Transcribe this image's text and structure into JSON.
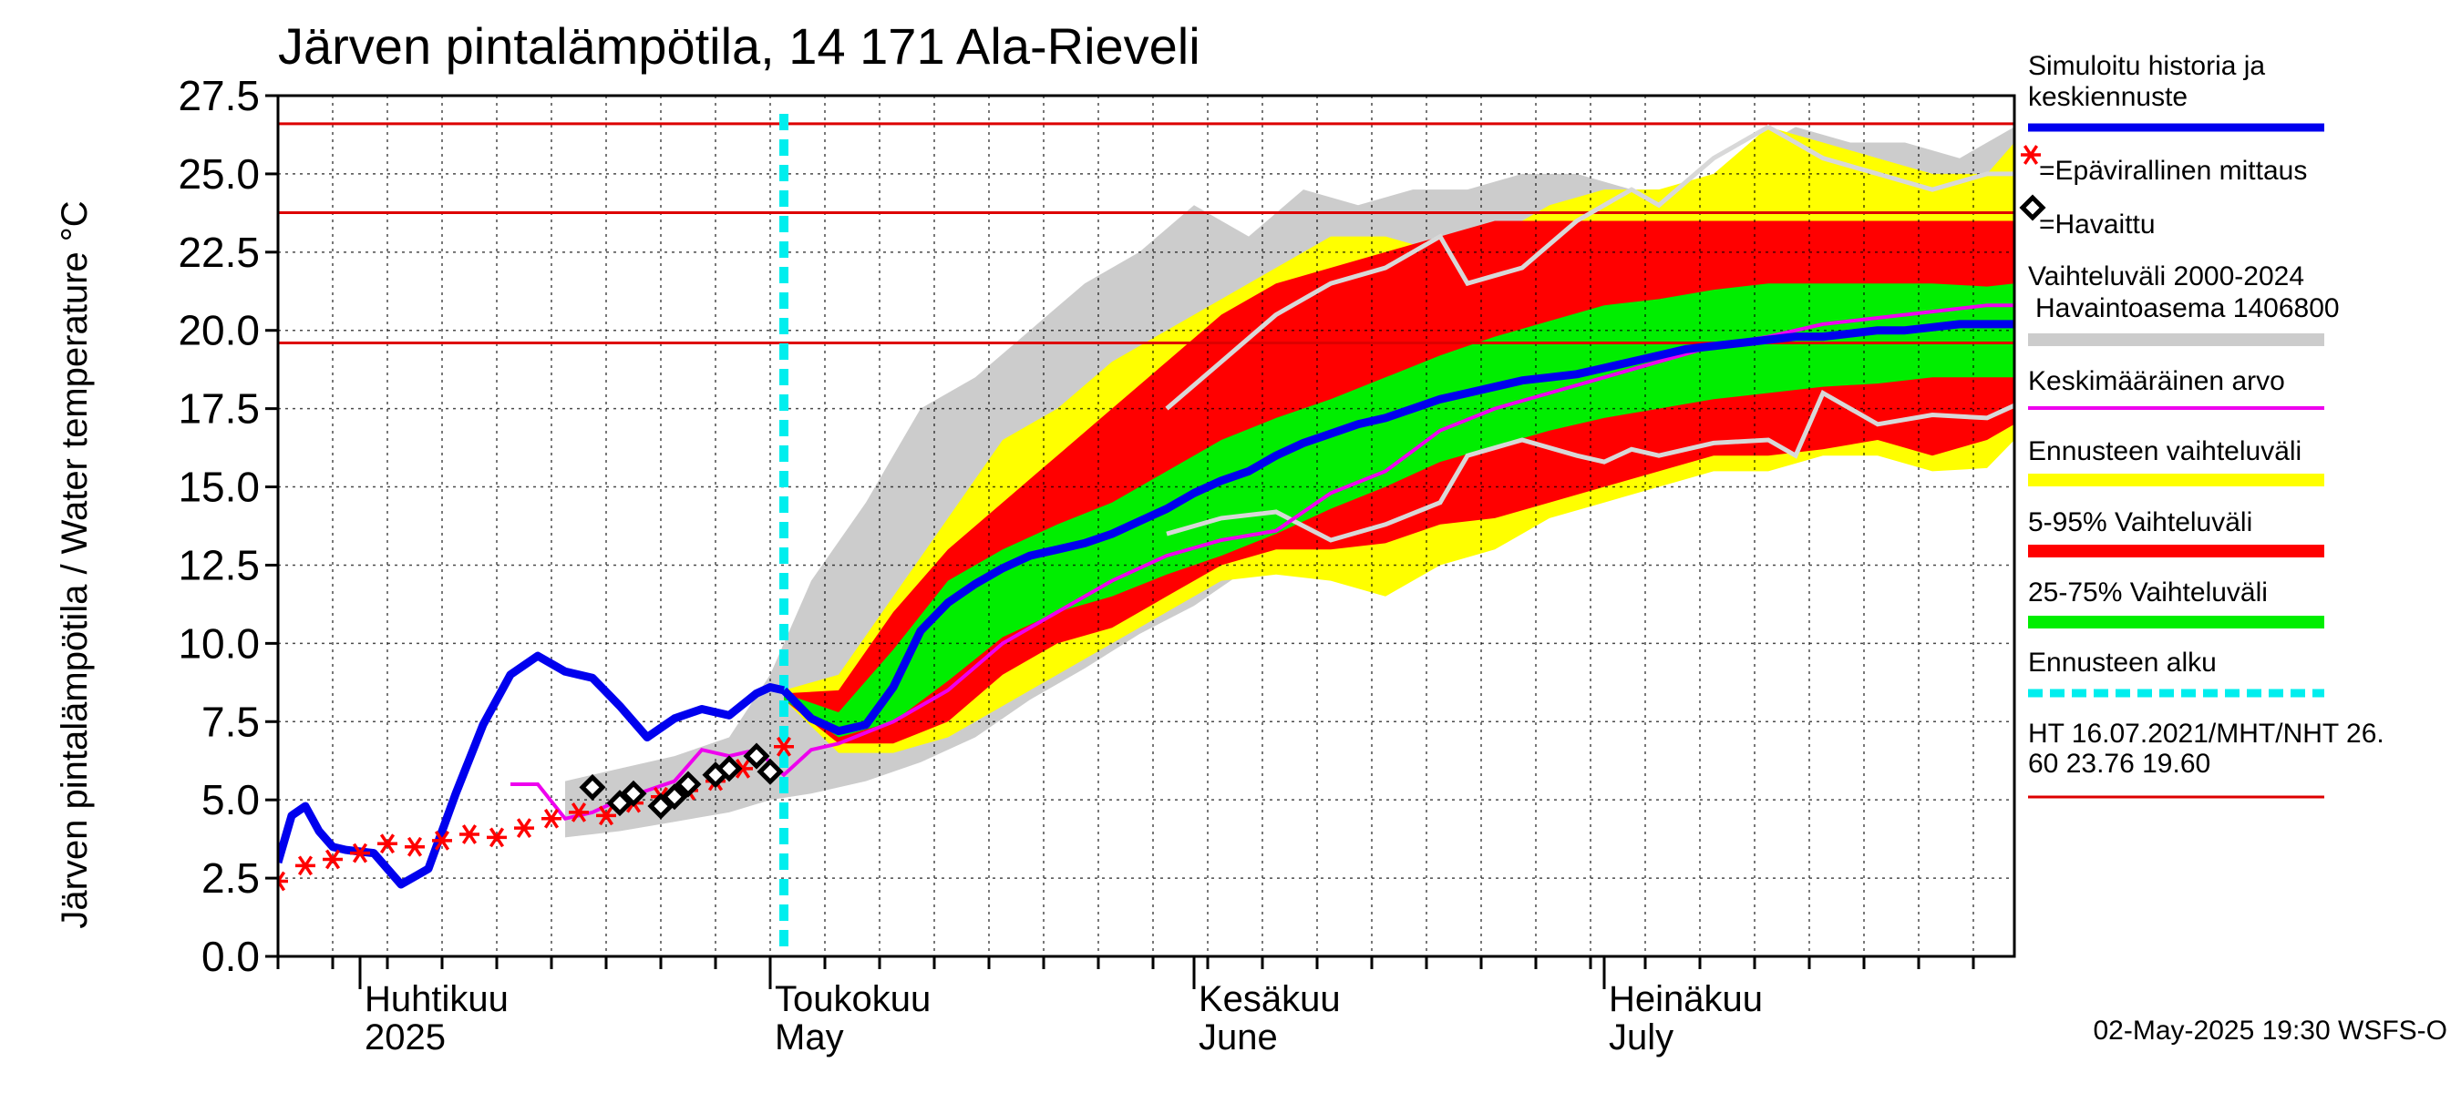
{
  "chart_data": {
    "type": "line",
    "title": "Järven pintalämpötila, 14 171 Ala-Rieveli",
    "ylabel": "Järven pintalämpötila / Water temperature °C",
    "ylim": [
      0,
      27.5
    ],
    "yticks": [
      "0.0",
      "2.5",
      "5.0",
      "7.5",
      "10.0",
      "12.5",
      "15.0",
      "17.5",
      "20.0",
      "22.5",
      "25.0",
      "27.5"
    ],
    "xlim": [
      "2025-03-26",
      "2025-07-31"
    ],
    "forecast_start": "2025-05-02",
    "month_labels": [
      {
        "date": "2025-04-01",
        "fi": "Huhtikuu",
        "en": "2025"
      },
      {
        "date": "2025-05-01",
        "fi": "Toukokuu",
        "en": "May"
      },
      {
        "date": "2025-06-01",
        "fi": "Kesäkuu",
        "en": "June"
      },
      {
        "date": "2025-07-01",
        "fi": "Heinäkuu",
        "en": "July"
      }
    ],
    "grid": true,
    "legend_position": "right",
    "colors": {
      "simulated": "#0000ee",
      "unofficial": "#ff0000",
      "observed": "#000000",
      "range_2000_2024": "#cccccc",
      "mean": "#ee00ee",
      "forecast_range": "#ffff00",
      "p5_95": "#ff0000",
      "p25_75": "#00ee00",
      "forecast_start": "#00eeee",
      "threshold": "#dd0000"
    },
    "thresholds": [
      26.6,
      23.76,
      19.6
    ],
    "legend": [
      {
        "key": "simulated",
        "label": "Simuloitu historia ja keskiennuste"
      },
      {
        "key": "unofficial",
        "label": "=Epävirallinen mittaus"
      },
      {
        "key": "observed",
        "label": "=Havaittu"
      },
      {
        "key": "range",
        "label": "Vaihteluväli 2000-2024 Havaintoasema 1406800"
      },
      {
        "key": "mean",
        "label": "Keskimääräinen arvo"
      },
      {
        "key": "forecast_range",
        "label": "Ennusteen vaihteluväli"
      },
      {
        "key": "p5_95",
        "label": "5-95% Vaihteluväli"
      },
      {
        "key": "p25_75",
        "label": "25-75% Vaihteluväli"
      },
      {
        "key": "forecast_start",
        "label": "Ennusteen alku"
      },
      {
        "key": "thresholds",
        "label": "HT 16.07.2021/MHT/NHT 26.60 23.76 19.60"
      }
    ],
    "simulated_history": {
      "x": [
        "2025-03-26",
        "2025-03-27",
        "2025-03-28",
        "2025-03-29",
        "2025-03-30",
        "2025-03-31",
        "2025-04-02",
        "2025-04-04",
        "2025-04-06",
        "2025-04-08",
        "2025-04-10",
        "2025-04-12",
        "2025-04-14",
        "2025-04-16",
        "2025-04-18",
        "2025-04-20",
        "2025-04-22",
        "2025-04-24",
        "2025-04-26",
        "2025-04-28",
        "2025-04-30",
        "2025-05-01",
        "2025-05-02"
      ],
      "y": [
        3.0,
        4.5,
        4.8,
        4.0,
        3.5,
        3.4,
        3.3,
        2.3,
        2.8,
        5.2,
        7.4,
        9.0,
        9.6,
        9.1,
        8.9,
        8.0,
        7.0,
        7.6,
        7.9,
        7.7,
        8.4,
        8.6,
        8.5
      ]
    },
    "forecast_median": {
      "x": [
        "2025-05-02",
        "2025-05-04",
        "2025-05-06",
        "2025-05-08",
        "2025-05-10",
        "2025-05-12",
        "2025-05-14",
        "2025-05-16",
        "2025-05-18",
        "2025-05-20",
        "2025-05-22",
        "2025-05-24",
        "2025-05-26",
        "2025-05-28",
        "2025-05-30",
        "2025-06-01",
        "2025-06-03",
        "2025-06-05",
        "2025-06-07",
        "2025-06-09",
        "2025-06-11",
        "2025-06-13",
        "2025-06-15",
        "2025-06-17",
        "2025-06-19",
        "2025-06-21",
        "2025-06-23",
        "2025-06-25",
        "2025-06-27",
        "2025-06-29",
        "2025-07-01",
        "2025-07-03",
        "2025-07-05",
        "2025-07-07",
        "2025-07-09",
        "2025-07-11",
        "2025-07-13",
        "2025-07-15",
        "2025-07-17",
        "2025-07-19",
        "2025-07-21",
        "2025-07-23",
        "2025-07-25",
        "2025-07-27",
        "2025-07-29",
        "2025-07-31"
      ],
      "y": [
        8.5,
        7.6,
        7.2,
        7.4,
        8.6,
        10.4,
        11.3,
        11.9,
        12.4,
        12.8,
        13.0,
        13.2,
        13.5,
        13.9,
        14.3,
        14.8,
        15.2,
        15.5,
        16.0,
        16.4,
        16.7,
        17.0,
        17.2,
        17.5,
        17.8,
        18.0,
        18.2,
        18.4,
        18.5,
        18.6,
        18.8,
        19.0,
        19.2,
        19.4,
        19.5,
        19.6,
        19.7,
        19.8,
        19.8,
        19.9,
        20.0,
        20.0,
        20.1,
        20.2,
        20.2,
        20.2
      ]
    },
    "range_2000_2024": {
      "x": [
        "2025-04-16",
        "2025-04-20",
        "2025-04-24",
        "2025-04-28",
        "2025-05-01",
        "2025-05-04",
        "2025-05-08",
        "2025-05-12",
        "2025-05-16",
        "2025-05-20",
        "2025-05-24",
        "2025-05-28",
        "2025-06-01",
        "2025-06-05",
        "2025-06-09",
        "2025-06-13",
        "2025-06-17",
        "2025-06-21",
        "2025-06-25",
        "2025-06-29",
        "2025-07-03",
        "2025-07-07",
        "2025-07-11",
        "2025-07-15",
        "2025-07-19",
        "2025-07-23",
        "2025-07-27",
        "2025-07-31"
      ],
      "upper": [
        5.6,
        6.0,
        6.4,
        7.0,
        9.0,
        12.0,
        14.5,
        17.5,
        18.5,
        20.0,
        21.5,
        22.5,
        24.0,
        23.0,
        24.5,
        24.0,
        24.5,
        24.5,
        25.0,
        25.0,
        24.5,
        24.5,
        25.5,
        26.5,
        26.0,
        26.0,
        25.5,
        26.5
      ],
      "lower": [
        3.8,
        4.0,
        4.3,
        4.6,
        5.0,
        5.2,
        5.6,
        6.2,
        7.0,
        8.2,
        9.2,
        10.3,
        11.2,
        12.4,
        13.4,
        14.2,
        14.8,
        15.2,
        15.6,
        15.8,
        16.2,
        16.4,
        16.6,
        16.6,
        16.8,
        17.0,
        17.2,
        17.2
      ]
    },
    "forecast_range": {
      "x": [
        "2025-05-02",
        "2025-05-06",
        "2025-05-10",
        "2025-05-14",
        "2025-05-18",
        "2025-05-22",
        "2025-05-26",
        "2025-05-30",
        "2025-06-03",
        "2025-06-07",
        "2025-06-11",
        "2025-06-15",
        "2025-06-19",
        "2025-06-23",
        "2025-06-27",
        "2025-07-01",
        "2025-07-05",
        "2025-07-09",
        "2025-07-13",
        "2025-07-17",
        "2025-07-21",
        "2025-07-25",
        "2025-07-29",
        "2025-07-31"
      ],
      "upper": [
        8.5,
        9.0,
        11.5,
        14.0,
        16.5,
        17.5,
        19.0,
        20.0,
        21.0,
        22.0,
        23.0,
        23.0,
        22.5,
        23.0,
        24.0,
        24.5,
        24.5,
        25.0,
        26.5,
        26.0,
        25.5,
        25.0,
        25.0,
        26.0
      ],
      "lower": [
        8.2,
        6.5,
        6.5,
        7.0,
        8.0,
        9.0,
        10.0,
        11.0,
        12.0,
        12.2,
        12.0,
        11.5,
        12.5,
        13.0,
        14.0,
        14.5,
        15.0,
        15.5,
        15.5,
        16.0,
        16.0,
        15.5,
        15.6,
        16.5
      ]
    },
    "p5_95": {
      "x": [
        "2025-05-02",
        "2025-05-06",
        "2025-05-10",
        "2025-05-14",
        "2025-05-18",
        "2025-05-22",
        "2025-05-26",
        "2025-05-30",
        "2025-06-03",
        "2025-06-07",
        "2025-06-11",
        "2025-06-15",
        "2025-06-19",
        "2025-06-23",
        "2025-06-27",
        "2025-07-01",
        "2025-07-05",
        "2025-07-09",
        "2025-07-13",
        "2025-07-17",
        "2025-07-21",
        "2025-07-25",
        "2025-07-29",
        "2025-07-31"
      ],
      "upper": [
        8.4,
        8.5,
        11.0,
        13.0,
        14.5,
        16.0,
        17.5,
        19.0,
        20.5,
        21.5,
        22.0,
        22.5,
        23.0,
        23.5,
        23.5,
        23.5,
        23.5,
        23.5,
        23.5,
        23.5,
        23.5,
        23.5,
        23.5,
        23.5
      ],
      "lower": [
        8.2,
        6.8,
        6.8,
        7.5,
        9.0,
        10.0,
        10.5,
        11.5,
        12.5,
        13.0,
        13.0,
        13.2,
        13.8,
        14.0,
        14.5,
        15.0,
        15.5,
        16.0,
        16.0,
        16.2,
        16.5,
        16.0,
        16.5,
        17.0
      ]
    },
    "p25_75": {
      "x": [
        "2025-05-02",
        "2025-05-06",
        "2025-05-10",
        "2025-05-14",
        "2025-05-18",
        "2025-05-22",
        "2025-05-26",
        "2025-05-30",
        "2025-06-03",
        "2025-06-07",
        "2025-06-11",
        "2025-06-15",
        "2025-06-19",
        "2025-06-23",
        "2025-06-27",
        "2025-07-01",
        "2025-07-05",
        "2025-07-09",
        "2025-07-13",
        "2025-07-17",
        "2025-07-21",
        "2025-07-25",
        "2025-07-29",
        "2025-07-31"
      ],
      "upper": [
        8.4,
        7.8,
        9.8,
        12.0,
        13.0,
        13.8,
        14.5,
        15.5,
        16.5,
        17.2,
        17.8,
        18.5,
        19.2,
        19.8,
        20.3,
        20.8,
        21.0,
        21.3,
        21.5,
        21.5,
        21.5,
        21.5,
        21.4,
        21.5
      ],
      "lower": [
        8.2,
        7.0,
        7.5,
        8.8,
        10.2,
        11.0,
        11.5,
        12.2,
        12.8,
        13.5,
        14.3,
        15.0,
        15.8,
        16.3,
        16.8,
        17.2,
        17.5,
        17.8,
        18.0,
        18.2,
        18.3,
        18.5,
        18.5,
        18.5
      ]
    },
    "mean": {
      "x": [
        "2025-04-12",
        "2025-04-14",
        "2025-04-16",
        "2025-04-18",
        "2025-04-20",
        "2025-04-22",
        "2025-04-24",
        "2025-04-26",
        "2025-04-28",
        "2025-04-30",
        "2025-05-02",
        "2025-05-04",
        "2025-05-06",
        "2025-05-10",
        "2025-05-14",
        "2025-05-18",
        "2025-05-22",
        "2025-05-26",
        "2025-05-30",
        "2025-06-03",
        "2025-06-07",
        "2025-06-11",
        "2025-06-15",
        "2025-06-19",
        "2025-06-23",
        "2025-06-27",
        "2025-07-01",
        "2025-07-05",
        "2025-07-09",
        "2025-07-13",
        "2025-07-17",
        "2025-07-21",
        "2025-07-25",
        "2025-07-29",
        "2025-07-31"
      ],
      "y": [
        5.5,
        5.5,
        4.4,
        4.6,
        5.0,
        5.3,
        5.6,
        6.6,
        6.4,
        6.6,
        5.8,
        6.6,
        6.8,
        7.5,
        8.5,
        10.0,
        11.0,
        12.0,
        12.8,
        13.3,
        13.6,
        14.8,
        15.5,
        16.8,
        17.5,
        18.0,
        18.5,
        19.0,
        19.5,
        19.8,
        20.2,
        20.4,
        20.6,
        20.8,
        20.8
      ]
    },
    "gray_year": {
      "x": [
        "2025-05-30",
        "2025-06-03",
        "2025-06-07",
        "2025-06-11",
        "2025-06-15",
        "2025-06-19",
        "2025-06-21",
        "2025-06-25",
        "2025-06-29",
        "2025-07-01",
        "2025-07-03",
        "2025-07-05",
        "2025-07-09",
        "2025-07-13",
        "2025-07-15",
        "2025-07-17",
        "2025-07-21",
        "2025-07-25",
        "2025-07-29",
        "2025-07-31"
      ],
      "upper": [
        17.5,
        19.0,
        20.5,
        21.5,
        22.0,
        23.0,
        21.5,
        22.0,
        23.5,
        24.0,
        24.5,
        24.0,
        25.5,
        26.5,
        26.0,
        25.5,
        25.0,
        24.5,
        25.0,
        25.0
      ],
      "lower": [
        13.5,
        14.0,
        14.2,
        13.3,
        13.8,
        14.5,
        16.0,
        16.5,
        16.0,
        15.8,
        16.2,
        16.0,
        16.4,
        16.5,
        16.0,
        18.0,
        17.0,
        17.3,
        17.2,
        17.6
      ]
    },
    "unofficial_measurements": {
      "x": [
        "2025-03-26",
        "2025-03-28",
        "2025-03-30",
        "2025-04-01",
        "2025-04-03",
        "2025-04-05",
        "2025-04-07",
        "2025-04-09",
        "2025-04-11",
        "2025-04-13",
        "2025-04-15",
        "2025-04-17",
        "2025-04-19",
        "2025-04-21",
        "2025-04-23",
        "2025-04-25",
        "2025-04-27",
        "2025-04-29",
        "2025-05-02"
      ],
      "y": [
        2.4,
        2.9,
        3.1,
        3.3,
        3.6,
        3.5,
        3.7,
        3.9,
        3.8,
        4.1,
        4.4,
        4.6,
        4.5,
        4.9,
        5.1,
        5.3,
        5.6,
        6.0,
        6.7
      ]
    },
    "observed": {
      "x": [
        "2025-04-18",
        "2025-04-20",
        "2025-04-21",
        "2025-04-23",
        "2025-04-24",
        "2025-04-25",
        "2025-04-27",
        "2025-04-28",
        "2025-04-30",
        "2025-05-01"
      ],
      "y": [
        5.4,
        4.9,
        5.2,
        4.8,
        5.1,
        5.5,
        5.8,
        6.0,
        6.4,
        5.9
      ]
    }
  },
  "footer": {
    "timestamp": "02-May-2025 19:30 WSFS-O"
  }
}
